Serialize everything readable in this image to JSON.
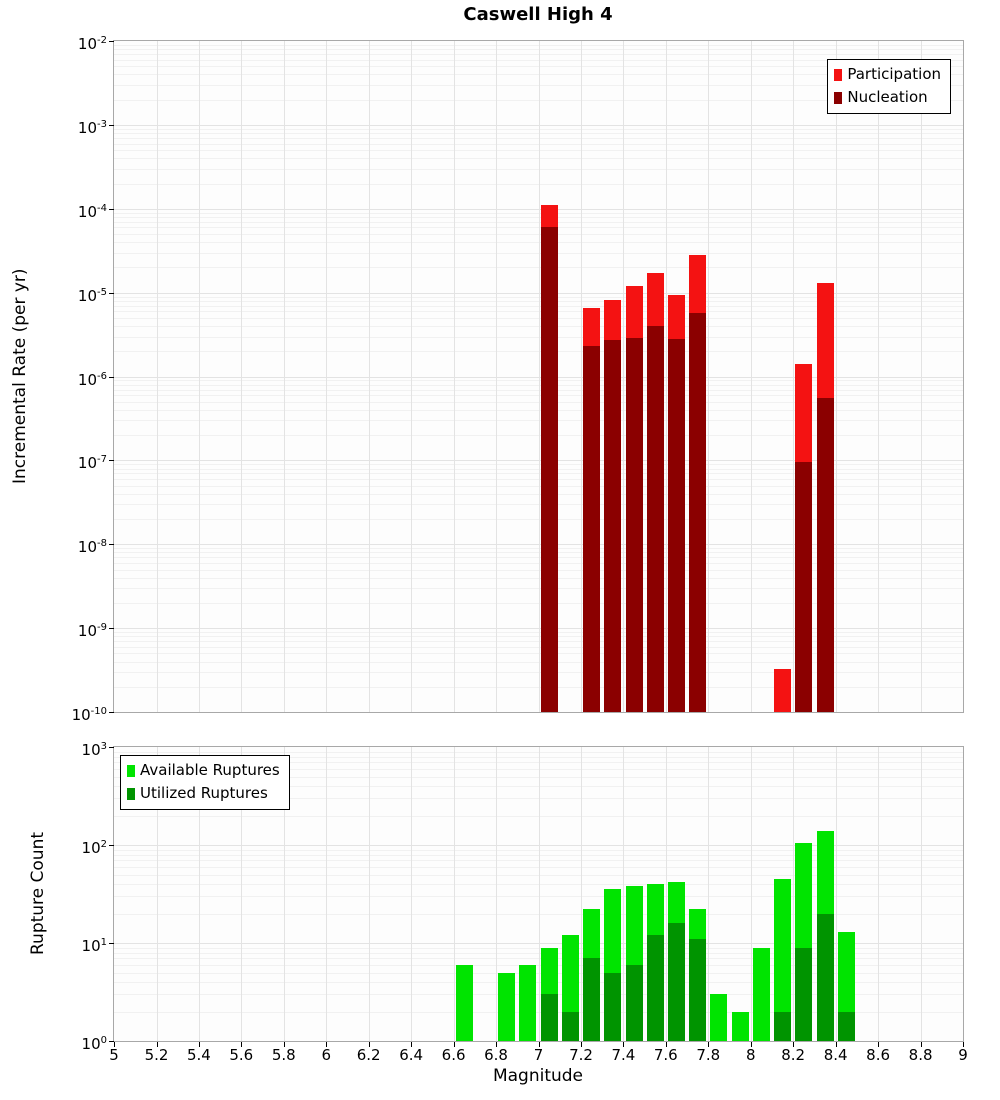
{
  "chart_data": {
    "type": "bar",
    "title": "Caswell High 4",
    "bin_width": 0.1,
    "x": {
      "label": "Magnitude",
      "lim": [
        5,
        9
      ],
      "tick_step": 0.2,
      "ticks": [
        "5",
        "5.2",
        "5.4",
        "5.6",
        "5.8",
        "6",
        "6.2",
        "6.4",
        "6.6",
        "6.8",
        "7",
        "7.2",
        "7.4",
        "7.6",
        "7.8",
        "8",
        "8.2",
        "8.4",
        "8.6",
        "8.8",
        "9"
      ]
    },
    "charts": [
      {
        "name": "incremental-rate",
        "type": "bar",
        "yscale": "log",
        "ylabel": "Incremental Rate (per yr)",
        "ylim": [
          1e-10,
          0.01
        ],
        "ylim_exp": [
          -10,
          -2
        ],
        "grid": true,
        "legend_position": "top-right",
        "series": [
          {
            "key": "participation",
            "label": "Participation",
            "color": "#f41212"
          },
          {
            "key": "nucleation",
            "label": "Nucleation",
            "color": "#8b0000"
          }
        ],
        "bars": [
          {
            "m": 7.0,
            "participation": 0.00011,
            "nucleation": 6e-05
          },
          {
            "m": 7.2,
            "participation": 6.6e-06,
            "nucleation": 2.3e-06
          },
          {
            "m": 7.3,
            "participation": 8.2e-06,
            "nucleation": 2.7e-06
          },
          {
            "m": 7.4,
            "participation": 1.2e-05,
            "nucleation": 2.9e-06
          },
          {
            "m": 7.5,
            "participation": 1.7e-05,
            "nucleation": 4e-06
          },
          {
            "m": 7.6,
            "participation": 9.4e-06,
            "nucleation": 2.8e-06
          },
          {
            "m": 7.7,
            "participation": 2.8e-05,
            "nucleation": 5.8e-06
          },
          {
            "m": 8.1,
            "participation": 3.3e-10,
            "nucleation": 0
          },
          {
            "m": 8.2,
            "participation": 1.4e-06,
            "nucleation": 9.5e-08
          },
          {
            "m": 8.3,
            "participation": 1.3e-05,
            "nucleation": 5.6e-07
          }
        ]
      },
      {
        "name": "rupture-count",
        "type": "bar",
        "yscale": "log",
        "ylabel": "Rupture Count",
        "ylim": [
          1,
          1000
        ],
        "ylim_exp": [
          0,
          3
        ],
        "grid": true,
        "legend_position": "top-left",
        "series": [
          {
            "key": "available",
            "label": "Available Ruptures",
            "color": "#00e400"
          },
          {
            "key": "utilized",
            "label": "Utilized Ruptures",
            "color": "#009400"
          }
        ],
        "bars": [
          {
            "m": 6.6,
            "available": 6,
            "utilized": 0
          },
          {
            "m": 6.8,
            "available": 5,
            "utilized": 0
          },
          {
            "m": 6.9,
            "available": 6,
            "utilized": 0
          },
          {
            "m": 7.0,
            "available": 9,
            "utilized": 3
          },
          {
            "m": 7.1,
            "available": 12,
            "utilized": 2
          },
          {
            "m": 7.2,
            "available": 22,
            "utilized": 7
          },
          {
            "m": 7.3,
            "available": 36,
            "utilized": 5
          },
          {
            "m": 7.4,
            "available": 38,
            "utilized": 6
          },
          {
            "m": 7.5,
            "available": 40,
            "utilized": 12
          },
          {
            "m": 7.6,
            "available": 42,
            "utilized": 16
          },
          {
            "m": 7.7,
            "available": 22,
            "utilized": 11
          },
          {
            "m": 7.8,
            "available": 3,
            "utilized": 0
          },
          {
            "m": 7.9,
            "available": 2,
            "utilized": 0
          },
          {
            "m": 8.0,
            "available": 9,
            "utilized": 0
          },
          {
            "m": 8.1,
            "available": 45,
            "utilized": 2
          },
          {
            "m": 8.2,
            "available": 105,
            "utilized": 9
          },
          {
            "m": 8.3,
            "available": 140,
            "utilized": 20
          },
          {
            "m": 8.4,
            "available": 13,
            "utilized": 2
          }
        ]
      }
    ]
  }
}
